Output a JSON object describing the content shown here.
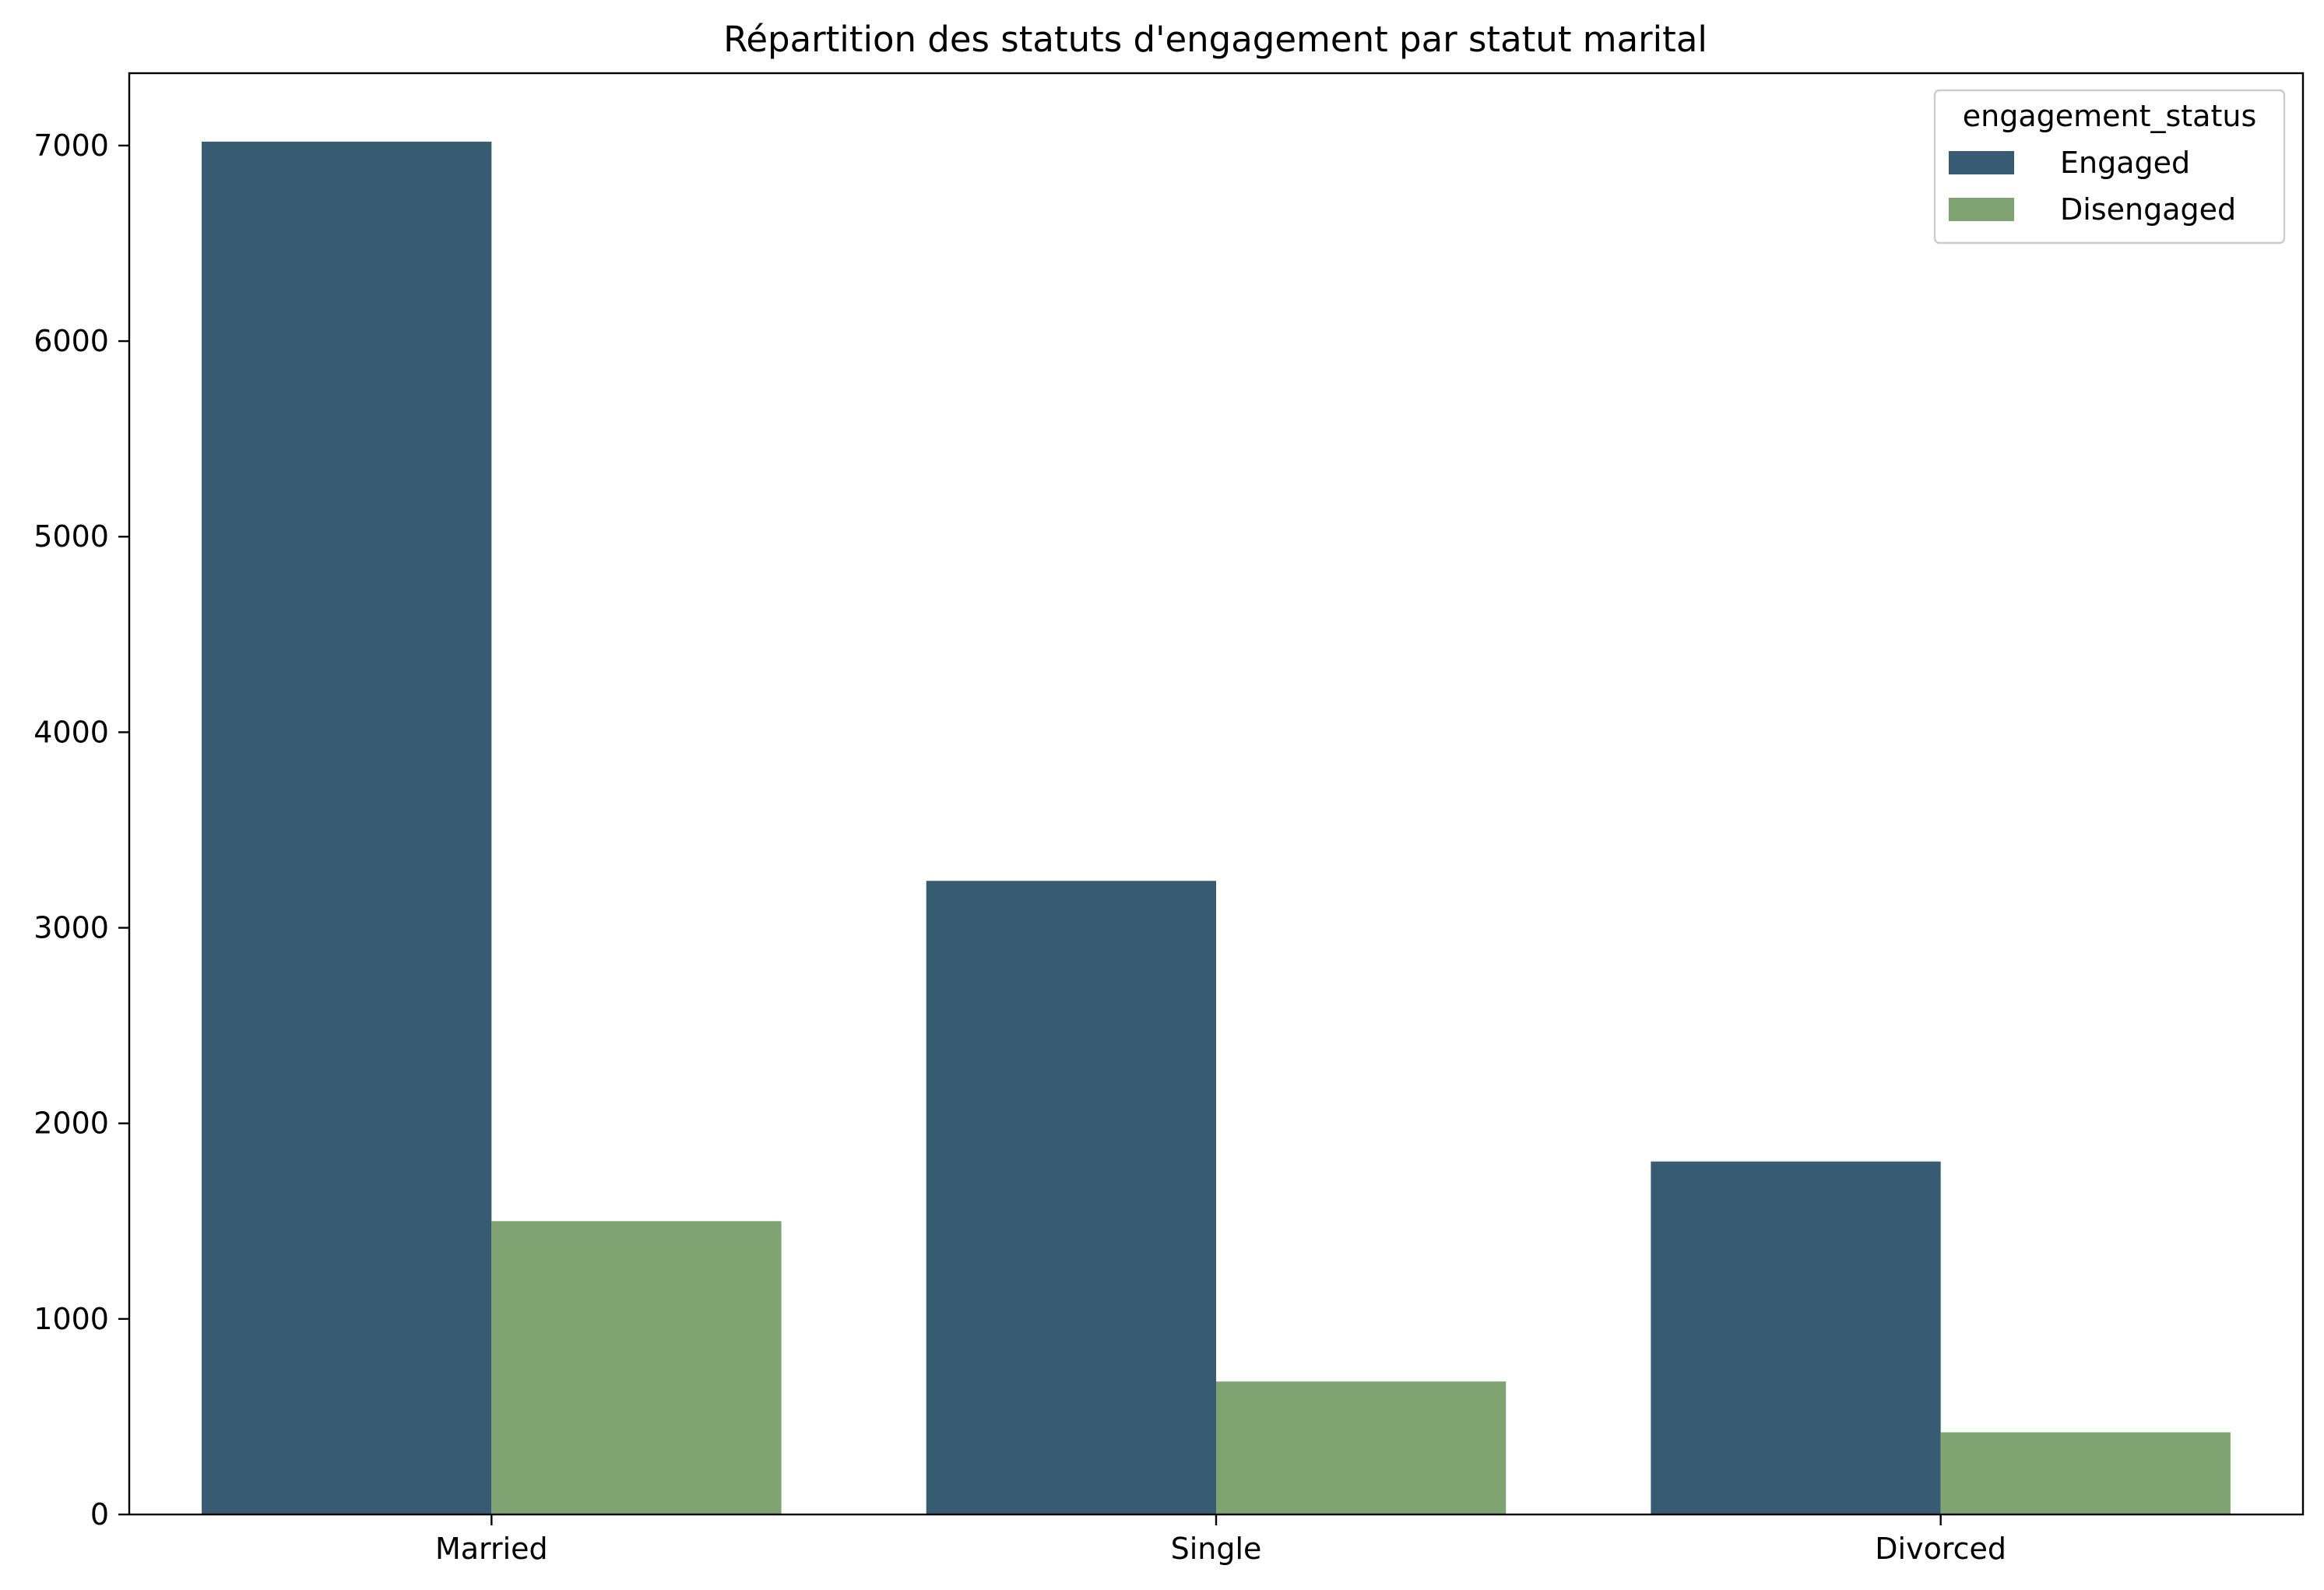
{
  "chart_data": {
    "type": "bar",
    "title": "Répartition des statuts d'engagement par statut marital",
    "xlabel": "",
    "ylabel": "",
    "categories": [
      "Married",
      "Single",
      "Divorced"
    ],
    "series": [
      {
        "name": "Engaged",
        "color": "#365b73",
        "values": [
          7020,
          3240,
          1805
        ]
      },
      {
        "name": "Disengaged",
        "color": "#7fa472",
        "values": [
          1500,
          680,
          420
        ]
      }
    ],
    "ylim": [
      0,
      7370
    ],
    "yticks": [
      0,
      1000,
      2000,
      3000,
      4000,
      5000,
      6000,
      7000
    ],
    "legend": {
      "title": "engagement_status",
      "position": "top-right"
    },
    "grid": false
  }
}
